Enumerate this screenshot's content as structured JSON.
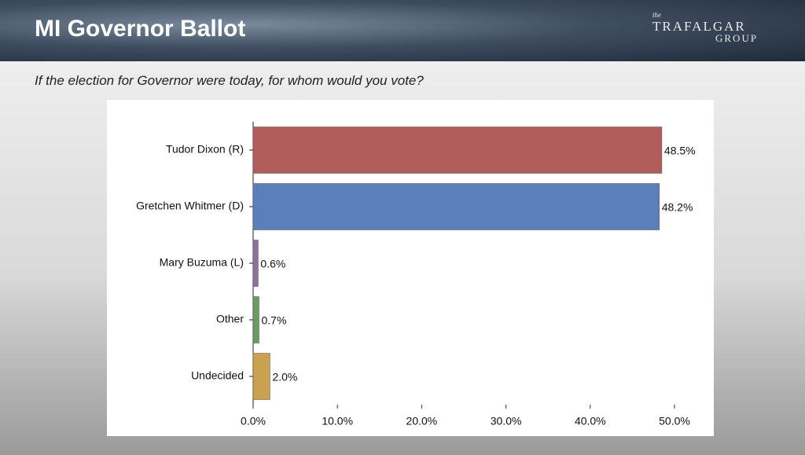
{
  "header": {
    "title": "MI Governor Ballot",
    "logo_small": "the",
    "logo_name": "TRAFALGAR",
    "logo_group": "GROUP"
  },
  "question": "If the election for Governor were today, for whom would you vote?",
  "chart_data": {
    "type": "bar",
    "orientation": "horizontal",
    "categories": [
      "Tudor Dixon (R)",
      "Gretchen Whitmer (D)",
      "Mary Buzuma (L)",
      "Other",
      "Undecided"
    ],
    "values": [
      48.5,
      48.2,
      0.6,
      0.7,
      2.0
    ],
    "value_labels": [
      "48.5%",
      "48.2%",
      "0.6%",
      "0.7%",
      "2.0%"
    ],
    "colors": [
      "#b05c5a",
      "#5b80b9",
      "#8b73a0",
      "#6c9a64",
      "#c9a14f"
    ],
    "xlim": [
      0,
      50
    ],
    "xticks": [
      {
        "value": 0,
        "label": "0.0%"
      },
      {
        "value": 10,
        "label": "10.0%"
      },
      {
        "value": 20,
        "label": "20.0%"
      },
      {
        "value": 30,
        "label": "30.0%"
      },
      {
        "value": 40,
        "label": "40.0%"
      },
      {
        "value": 50,
        "label": "50.0%"
      }
    ]
  }
}
